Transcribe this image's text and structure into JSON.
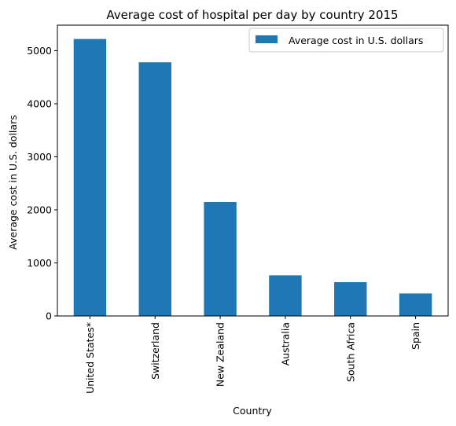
{
  "chart_data": {
    "type": "bar",
    "title": "Average cost of hospital per day by country 2015",
    "xlabel": "Country",
    "ylabel": "Average cost in U.S. dollars",
    "categories": [
      "United States*",
      "Switzerland",
      "New Zealand",
      "Australia",
      "South Africa",
      "Spain"
    ],
    "series": [
      {
        "name": "Average cost in U.S. dollars",
        "values": [
          5220,
          4781,
          2148,
          765,
          637,
          424
        ],
        "color": "#1f77b4"
      }
    ],
    "ylim": [
      0,
      5481
    ],
    "yticks": [
      0,
      1000,
      2000,
      3000,
      4000,
      5000
    ],
    "grid": false,
    "legend_position": "top-right"
  }
}
